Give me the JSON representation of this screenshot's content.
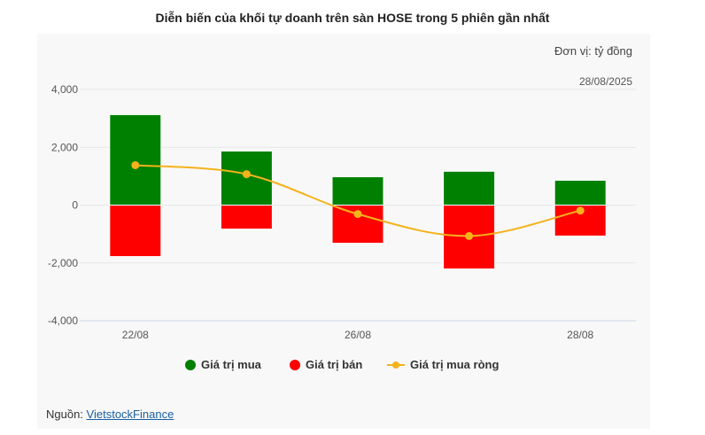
{
  "title": "Diễn biến của khối tự doanh trên sàn HOSE trong 5 phiên gần nhất",
  "unit": "Đơn vị: tỷ đồng",
  "date": "28/08/2025",
  "source": {
    "label": "Nguồn: ",
    "link": "VietstockFinance"
  },
  "chart_data": {
    "type": "bar",
    "categories": [
      "22/08",
      "",
      "26/08",
      "",
      "28/08"
    ],
    "ylim": [
      -4000,
      4000
    ],
    "yticks": [
      "4,000",
      "2,000",
      "0",
      "-2,000",
      "-4,000"
    ],
    "ytick_values": [
      4000,
      2000,
      0,
      -2000,
      -4000
    ],
    "grid": true,
    "legend_placement": "bottom",
    "series": [
      {
        "name": "Giá trị mua",
        "type": "bar",
        "color": "#008000",
        "values": [
          3130,
          1870,
          980,
          1170,
          860
        ]
      },
      {
        "name": "Giá trị bán",
        "type": "bar",
        "color": "#ff0000",
        "values": [
          -1780,
          -830,
          -1320,
          -2210,
          -1070
        ]
      },
      {
        "name": "Giá trị mua ròng",
        "type": "line",
        "color": "#f5b21b",
        "values": [
          1380,
          1070,
          -310,
          -1070,
          -190
        ]
      }
    ]
  }
}
